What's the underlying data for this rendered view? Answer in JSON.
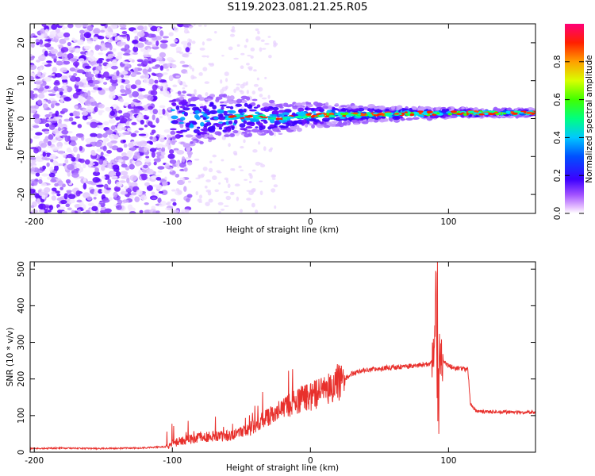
{
  "page_title": "S119.2023.081.21.25.R05",
  "colors": {
    "snr_line": "#e8302c",
    "axis": "#000000"
  },
  "chart_data": [
    {
      "id": "spectrogram",
      "type": "heatmap",
      "xlabel": "Height of straight line (km)",
      "ylabel": "Frequency (Hz)",
      "xlim": [
        -203,
        163
      ],
      "ylim": [
        -25,
        25
      ],
      "xticks": [
        -200,
        -100,
        0,
        100
      ],
      "yticks": [
        -20,
        -10,
        0,
        10,
        20
      ],
      "grid": false,
      "colorbar": {
        "label": "Normalized spectral amplitude",
        "range": [
          0.0,
          1.0
        ],
        "ticks": [
          0.0,
          0.2,
          0.4,
          0.6,
          0.8
        ],
        "colormap": "rainbow"
      },
      "features": {
        "noise_x_range": [
          -203,
          -105
        ],
        "signal_band_center_hz": [
          {
            "x": -100,
            "y": 0.0
          },
          {
            "x": -40,
            "y": 0.5
          },
          {
            "x": -20,
            "y": 0.0
          },
          {
            "x": 0,
            "y": 0.8
          },
          {
            "x": 50,
            "y": 1.2
          },
          {
            "x": 100,
            "y": 1.5
          },
          {
            "x": 163,
            "y": 1.5
          }
        ]
      }
    },
    {
      "id": "snr",
      "type": "line",
      "xlabel": "Height of straight line (km)",
      "ylabel": "SNR (10 * v/v)",
      "xlim": [
        -203,
        163
      ],
      "ylim": [
        0,
        520
      ],
      "xticks": [
        -200,
        -100,
        0,
        100
      ],
      "yticks": [
        0,
        100,
        200,
        300,
        400,
        500
      ],
      "grid": false,
      "series": [
        {
          "x": [
            -203,
            -180,
            -150,
            -120,
            -105,
            -95,
            -80,
            -60,
            -50,
            -40,
            -30,
            -20,
            -10,
            0,
            10,
            20,
            25,
            30,
            40,
            50,
            60,
            70,
            80,
            85,
            88,
            90,
            91,
            92,
            93,
            95,
            100,
            105,
            110,
            114,
            116,
            120,
            130,
            140,
            150,
            163
          ],
          "y": [
            10,
            11,
            10,
            12,
            15,
            30,
            40,
            45,
            55,
            70,
            100,
            120,
            140,
            150,
            170,
            185,
            200,
            215,
            225,
            228,
            232,
            235,
            238,
            240,
            245,
            300,
            510,
            100,
            280,
            250,
            235,
            230,
            228,
            225,
            130,
            112,
            110,
            110,
            108,
            110
          ]
        }
      ],
      "annotations": {
        "spike_peak": {
          "x": 92,
          "y": 520
        },
        "spike_dip": {
          "x": 93,
          "y": 50
        }
      }
    }
  ]
}
